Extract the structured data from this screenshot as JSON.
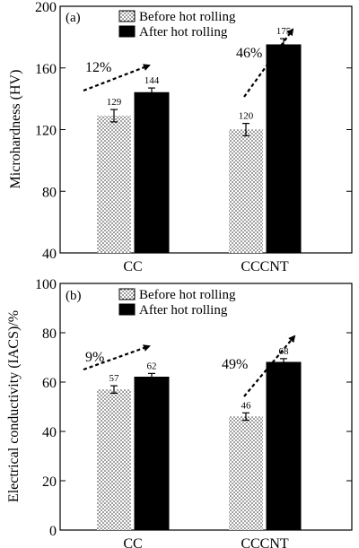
{
  "chart_data": [
    {
      "type": "bar",
      "panel_label": "(a)",
      "categories": [
        "CC",
        "CCCNT"
      ],
      "ylabel": "Microhardness (HV)",
      "ylim": [
        40,
        200
      ],
      "yticks": [
        "40",
        "80",
        "120",
        "160",
        "200"
      ],
      "legend_position": "top",
      "series": [
        {
          "name": "Before hot rolling",
          "pattern": "dotted",
          "values": [
            129,
            120
          ],
          "errors": [
            4,
            4
          ]
        },
        {
          "name": "After hot rolling",
          "pattern": "solid",
          "values": [
            144,
            175
          ],
          "errors": [
            3,
            4
          ]
        }
      ],
      "value_labels": [
        [
          "129",
          "120"
        ],
        [
          "144",
          "175"
        ]
      ],
      "increase_labels": [
        "12%",
        "46%"
      ]
    },
    {
      "type": "bar",
      "panel_label": "(b)",
      "categories": [
        "CC",
        "CCCNT"
      ],
      "ylabel": "Electrical conductivity (IACS)/%",
      "ylim": [
        0,
        100
      ],
      "yticks": [
        "0",
        "20",
        "40",
        "60",
        "80",
        "100"
      ],
      "legend_position": "top",
      "series": [
        {
          "name": "Before hot rolling",
          "pattern": "dotted",
          "values": [
            57,
            46
          ],
          "errors": [
            1.5,
            1.5
          ]
        },
        {
          "name": "After hot rolling",
          "pattern": "solid",
          "values": [
            62,
            68
          ],
          "errors": [
            1.5,
            1.5
          ]
        }
      ],
      "value_labels": [
        [
          "57",
          "46"
        ],
        [
          "62",
          "68"
        ]
      ],
      "increase_labels": [
        "9%",
        "49%"
      ]
    }
  ],
  "colors": {
    "after": "#000000",
    "before_dot": "#222222",
    "before_bg": "#ffffff",
    "arrow": "#000000"
  }
}
